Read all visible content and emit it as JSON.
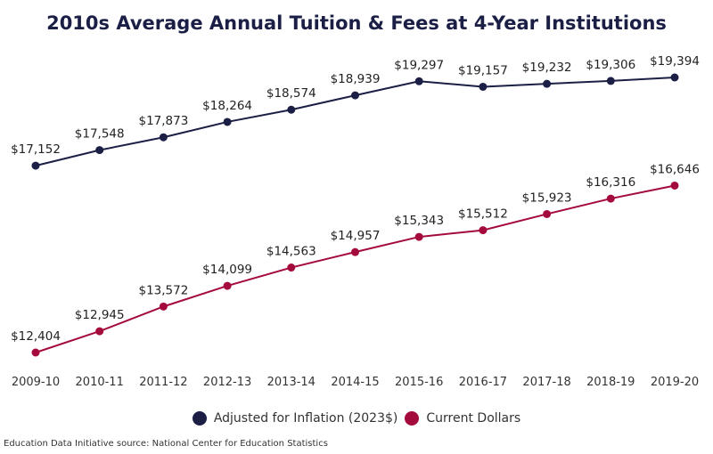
{
  "chart_data": {
    "type": "line",
    "title": "2010s Average Annual Tuition & Fees at 4-Year Institutions",
    "categories": [
      "2009-10",
      "2010-11",
      "2011-12",
      "2012-13",
      "2013-14",
      "2014-15",
      "2015-16",
      "2016-17",
      "2017-18",
      "2018-19",
      "2019-20"
    ],
    "series": [
      {
        "name": "Adjusted for Inflation (2023$)",
        "color": "#1b1f45",
        "values": [
          17152,
          17548,
          17873,
          18264,
          18574,
          18939,
          19297,
          19157,
          19232,
          19306,
          19394
        ]
      },
      {
        "name": "Current Dollars",
        "color": "#a50a3c",
        "values": [
          12404,
          12945,
          13572,
          14099,
          14563,
          14957,
          15343,
          15512,
          15923,
          16316,
          16646
        ]
      }
    ],
    "data_labels": "currency",
    "grid": false,
    "legend_position": "bottom"
  },
  "source": "Education Data Initiative source: National Center for Education Statistics"
}
